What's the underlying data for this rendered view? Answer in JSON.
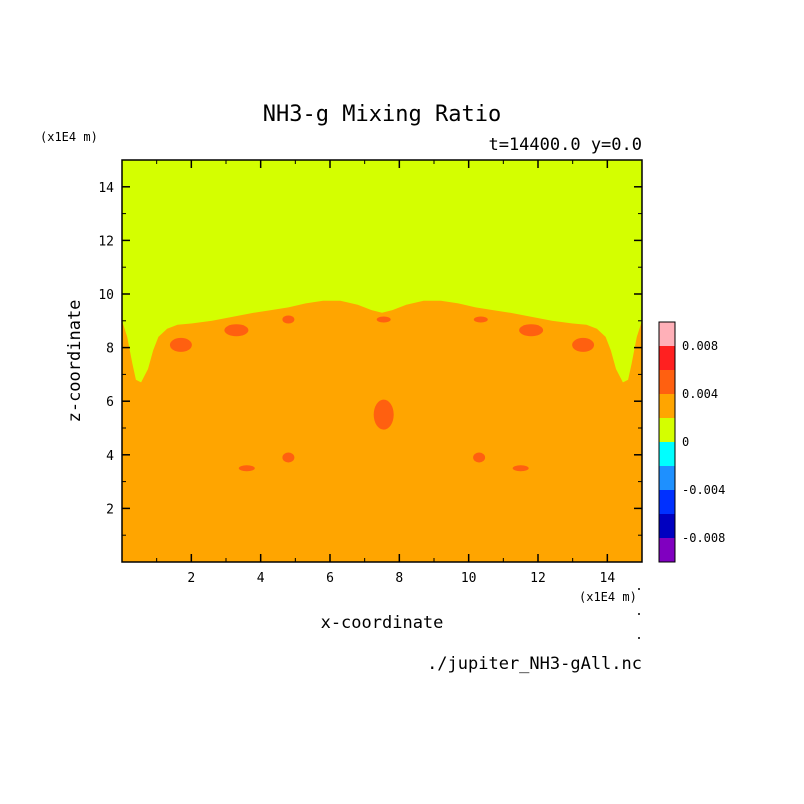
{
  "chart_data": {
    "type": "heatmap",
    "title": "NH3-g Mixing Ratio",
    "subtitle": "t=14400.0 y=0.0",
    "xlabel": "x-coordinate",
    "ylabel": "z-coordinate",
    "x_unit": "(x1E4 m)",
    "y_unit": "(x1E4 m)",
    "xlim": [
      0,
      15
    ],
    "ylim": [
      0,
      15
    ],
    "x_ticks": [
      2,
      4,
      6,
      8,
      10,
      12,
      14
    ],
    "y_ticks": [
      2,
      4,
      6,
      8,
      10,
      12,
      14
    ],
    "footer": "./jupiter_NH3-gAll.nc",
    "colorbar": {
      "labels": [
        "0.008",
        "0.004",
        "0",
        "-0.004",
        "-0.008"
      ],
      "label_values": [
        0.008,
        0.004,
        0,
        -0.004,
        -0.008
      ],
      "range": [
        -0.01,
        0.01
      ],
      "levels": [
        {
          "from": 0.008,
          "to": 0.01,
          "color": "#ffb0b8"
        },
        {
          "from": 0.006,
          "to": 0.008,
          "color": "#ff2020"
        },
        {
          "from": 0.004,
          "to": 0.006,
          "color": "#ff6010"
        },
        {
          "from": 0.002,
          "to": 0.004,
          "color": "#ffa500"
        },
        {
          "from": 0.0,
          "to": 0.002,
          "color": "#d4ff00"
        },
        {
          "from": -0.002,
          "to": 0.0,
          "color": "#00ffff"
        },
        {
          "from": -0.004,
          "to": -0.002,
          "color": "#1e90ff"
        },
        {
          "from": -0.006,
          "to": -0.004,
          "color": "#0030ff"
        },
        {
          "from": -0.008,
          "to": -0.006,
          "color": "#0000c0"
        },
        {
          "from": -0.01,
          "to": -0.008,
          "color": "#8000c0"
        }
      ]
    },
    "regions": {
      "upper_level_value": "0 to 0.002",
      "lower_level_value": "0.002 to 0.004",
      "interface_x": [
        0,
        0.15,
        0.3,
        0.4,
        0.55,
        0.75,
        0.9,
        1.05,
        1.3,
        1.6,
        2.0,
        2.6,
        3.2,
        3.8,
        4.3,
        4.8,
        5.3,
        5.8,
        6.3,
        6.8,
        7.2,
        7.5,
        7.8,
        8.2,
        8.7,
        9.2,
        9.7,
        10.2,
        10.7,
        11.2,
        11.8,
        12.4,
        13.0,
        13.4,
        13.7,
        13.95,
        14.1,
        14.25,
        14.45,
        14.6,
        14.7,
        14.85,
        15
      ],
      "interface_z": [
        9.0,
        8.4,
        7.4,
        6.8,
        6.7,
        7.2,
        7.9,
        8.4,
        8.7,
        8.85,
        8.9,
        9.0,
        9.15,
        9.3,
        9.4,
        9.5,
        9.65,
        9.75,
        9.75,
        9.6,
        9.4,
        9.3,
        9.4,
        9.6,
        9.75,
        9.75,
        9.65,
        9.5,
        9.4,
        9.3,
        9.15,
        9.0,
        8.9,
        8.85,
        8.7,
        8.4,
        7.9,
        7.2,
        6.7,
        6.8,
        7.4,
        8.4,
        9.0
      ],
      "blobs_0.004_0.006": [
        {
          "x": 1.7,
          "z": 8.1
        },
        {
          "x": 3.3,
          "z": 8.65
        },
        {
          "x": 4.8,
          "z": 9.05
        },
        {
          "x": 7.55,
          "z": 9.05
        },
        {
          "x": 7.55,
          "z": 5.5
        },
        {
          "x": 3.6,
          "z": 3.5
        },
        {
          "x": 4.8,
          "z": 3.9
        },
        {
          "x": 10.35,
          "z": 9.05
        },
        {
          "x": 11.8,
          "z": 8.65
        },
        {
          "x": 13.3,
          "z": 8.1
        },
        {
          "x": 11.5,
          "z": 3.5
        },
        {
          "x": 10.3,
          "z": 3.9
        }
      ]
    }
  }
}
